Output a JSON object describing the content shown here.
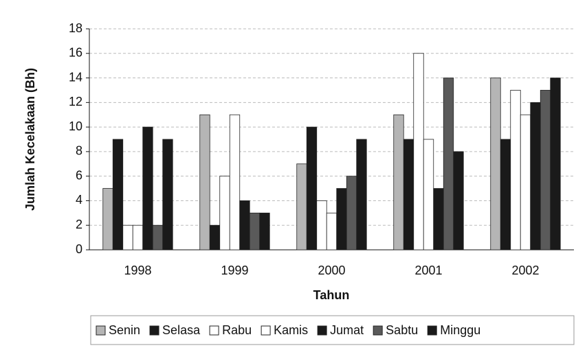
{
  "chart_data": {
    "type": "bar",
    "y_label": "Jumlah Kecelakaan (Bh)",
    "x_label": "Tahun",
    "categories": [
      "1998",
      "1999",
      "2000",
      "2001",
      "2002"
    ],
    "series": [
      {
        "name": "Senin",
        "color": "#b5b5b5",
        "values": [
          5,
          11,
          7,
          11,
          14
        ]
      },
      {
        "name": "Selasa",
        "color": "#1a1a1a",
        "values": [
          9,
          2,
          10,
          9,
          9
        ]
      },
      {
        "name": "Rabu",
        "color": "#ffffff",
        "values": [
          2,
          6,
          4,
          16,
          13
        ]
      },
      {
        "name": "Kamis",
        "color": "#ffffff",
        "values": [
          2,
          11,
          3,
          9,
          11
        ]
      },
      {
        "name": "Jumat",
        "color": "#1a1a1a",
        "values": [
          10,
          4,
          5,
          5,
          12
        ]
      },
      {
        "name": "Sabtu",
        "color": "#5a5a5a",
        "values": [
          2,
          3,
          6,
          14,
          13
        ]
      },
      {
        "name": "Minggu",
        "color": "#1a1a1a",
        "values": [
          9,
          3,
          9,
          8,
          14
        ]
      }
    ],
    "ylim": [
      0,
      18
    ],
    "yticks": [
      0,
      2,
      4,
      6,
      8,
      10,
      12,
      14,
      16,
      18
    ],
    "grid": true,
    "legend": "bottom"
  }
}
